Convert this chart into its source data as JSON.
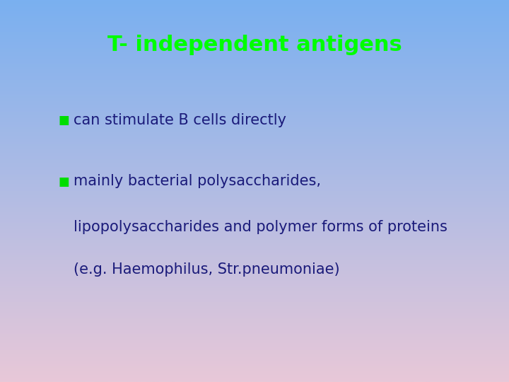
{
  "title": "T- independent antigens",
  "title_color": "#00ff00",
  "title_fontsize": 22,
  "bullet_color": "#00dd00",
  "text_color": "#1a1a7a",
  "bullet_char": "■",
  "bullet1": "can stimulate B cells directly",
  "bullet2": "mainly bacterial polysaccharides,",
  "line3": "lipopolysaccharides and polymer forms of proteins",
  "line4": "(e.g. Haemophilus, Str.pneumoniae)",
  "text_fontsize": 15,
  "bg_top_color": "#7ab0f0",
  "bg_bottom_color": "#e8c8d8",
  "fig_width": 7.2,
  "fig_height": 5.4,
  "dpi": 100
}
